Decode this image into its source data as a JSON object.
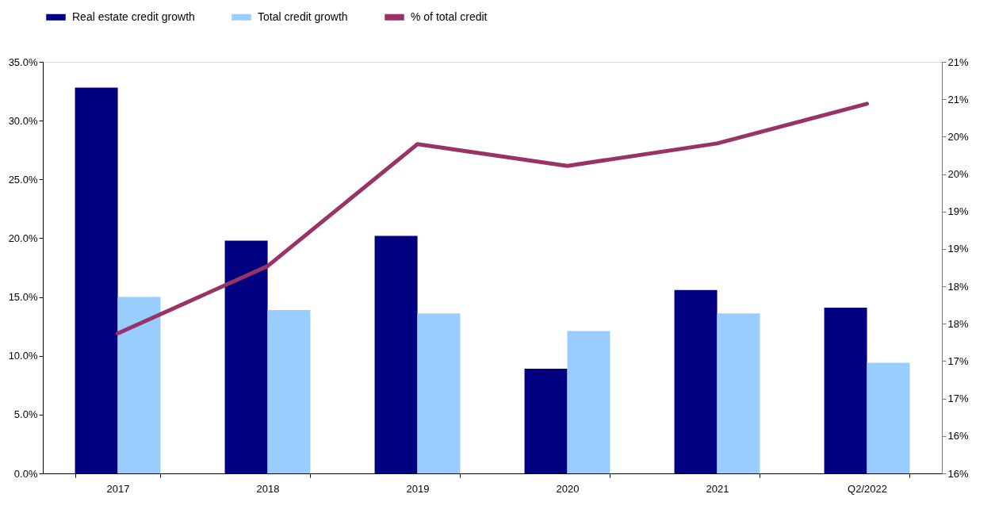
{
  "chart_data": {
    "type": "bar",
    "categories": [
      "2017",
      "2018",
      "2019",
      "2020",
      "2021",
      "Q2/2022"
    ],
    "series": [
      {
        "name": "Real estate credit growth",
        "color": "#000080",
        "values": [
          32.8,
          19.8,
          20.2,
          8.9,
          15.6,
          14.1
        ]
      },
      {
        "name": "Total credit growth",
        "color": "#99ccff",
        "values": [
          15.0,
          13.9,
          13.6,
          12.1,
          13.6,
          9.4
        ]
      },
      {
        "name": "% of total credit",
        "color": "#993366",
        "type": "line",
        "axis": "y2",
        "values": [
          17.37,
          18.27,
          19.9,
          19.61,
          19.91,
          20.44
        ]
      }
    ],
    "ylim": [
      0,
      35
    ],
    "yticks": [
      {
        "value": 0,
        "label": "0.0%"
      },
      {
        "value": 5,
        "label": "5.0%"
      },
      {
        "value": 10,
        "label": "10.0%"
      },
      {
        "value": 15,
        "label": "15.0%"
      },
      {
        "value": 20,
        "label": "20.0%"
      },
      {
        "value": 25,
        "label": "25.0%"
      },
      {
        "value": 30,
        "label": "30.0%"
      },
      {
        "value": 35,
        "label": "35.0%"
      }
    ],
    "y2lim": [
      15.5,
      21
    ],
    "y2ticks": [
      {
        "value": 15.5,
        "label": "16%"
      },
      {
        "value": 16,
        "label": "16%"
      },
      {
        "value": 16.5,
        "label": "17%"
      },
      {
        "value": 17,
        "label": "17%"
      },
      {
        "value": 17.5,
        "label": "18%"
      },
      {
        "value": 18,
        "label": "18%"
      },
      {
        "value": 18.5,
        "label": "19%"
      },
      {
        "value": 19,
        "label": "19%"
      },
      {
        "value": 19.5,
        "label": "20%"
      },
      {
        "value": 20,
        "label": "20%"
      },
      {
        "value": 20.5,
        "label": "21%"
      },
      {
        "value": 21,
        "label": "21%"
      }
    ],
    "legend": "top",
    "grid": false,
    "marker": "none",
    "line_style": "solid"
  }
}
